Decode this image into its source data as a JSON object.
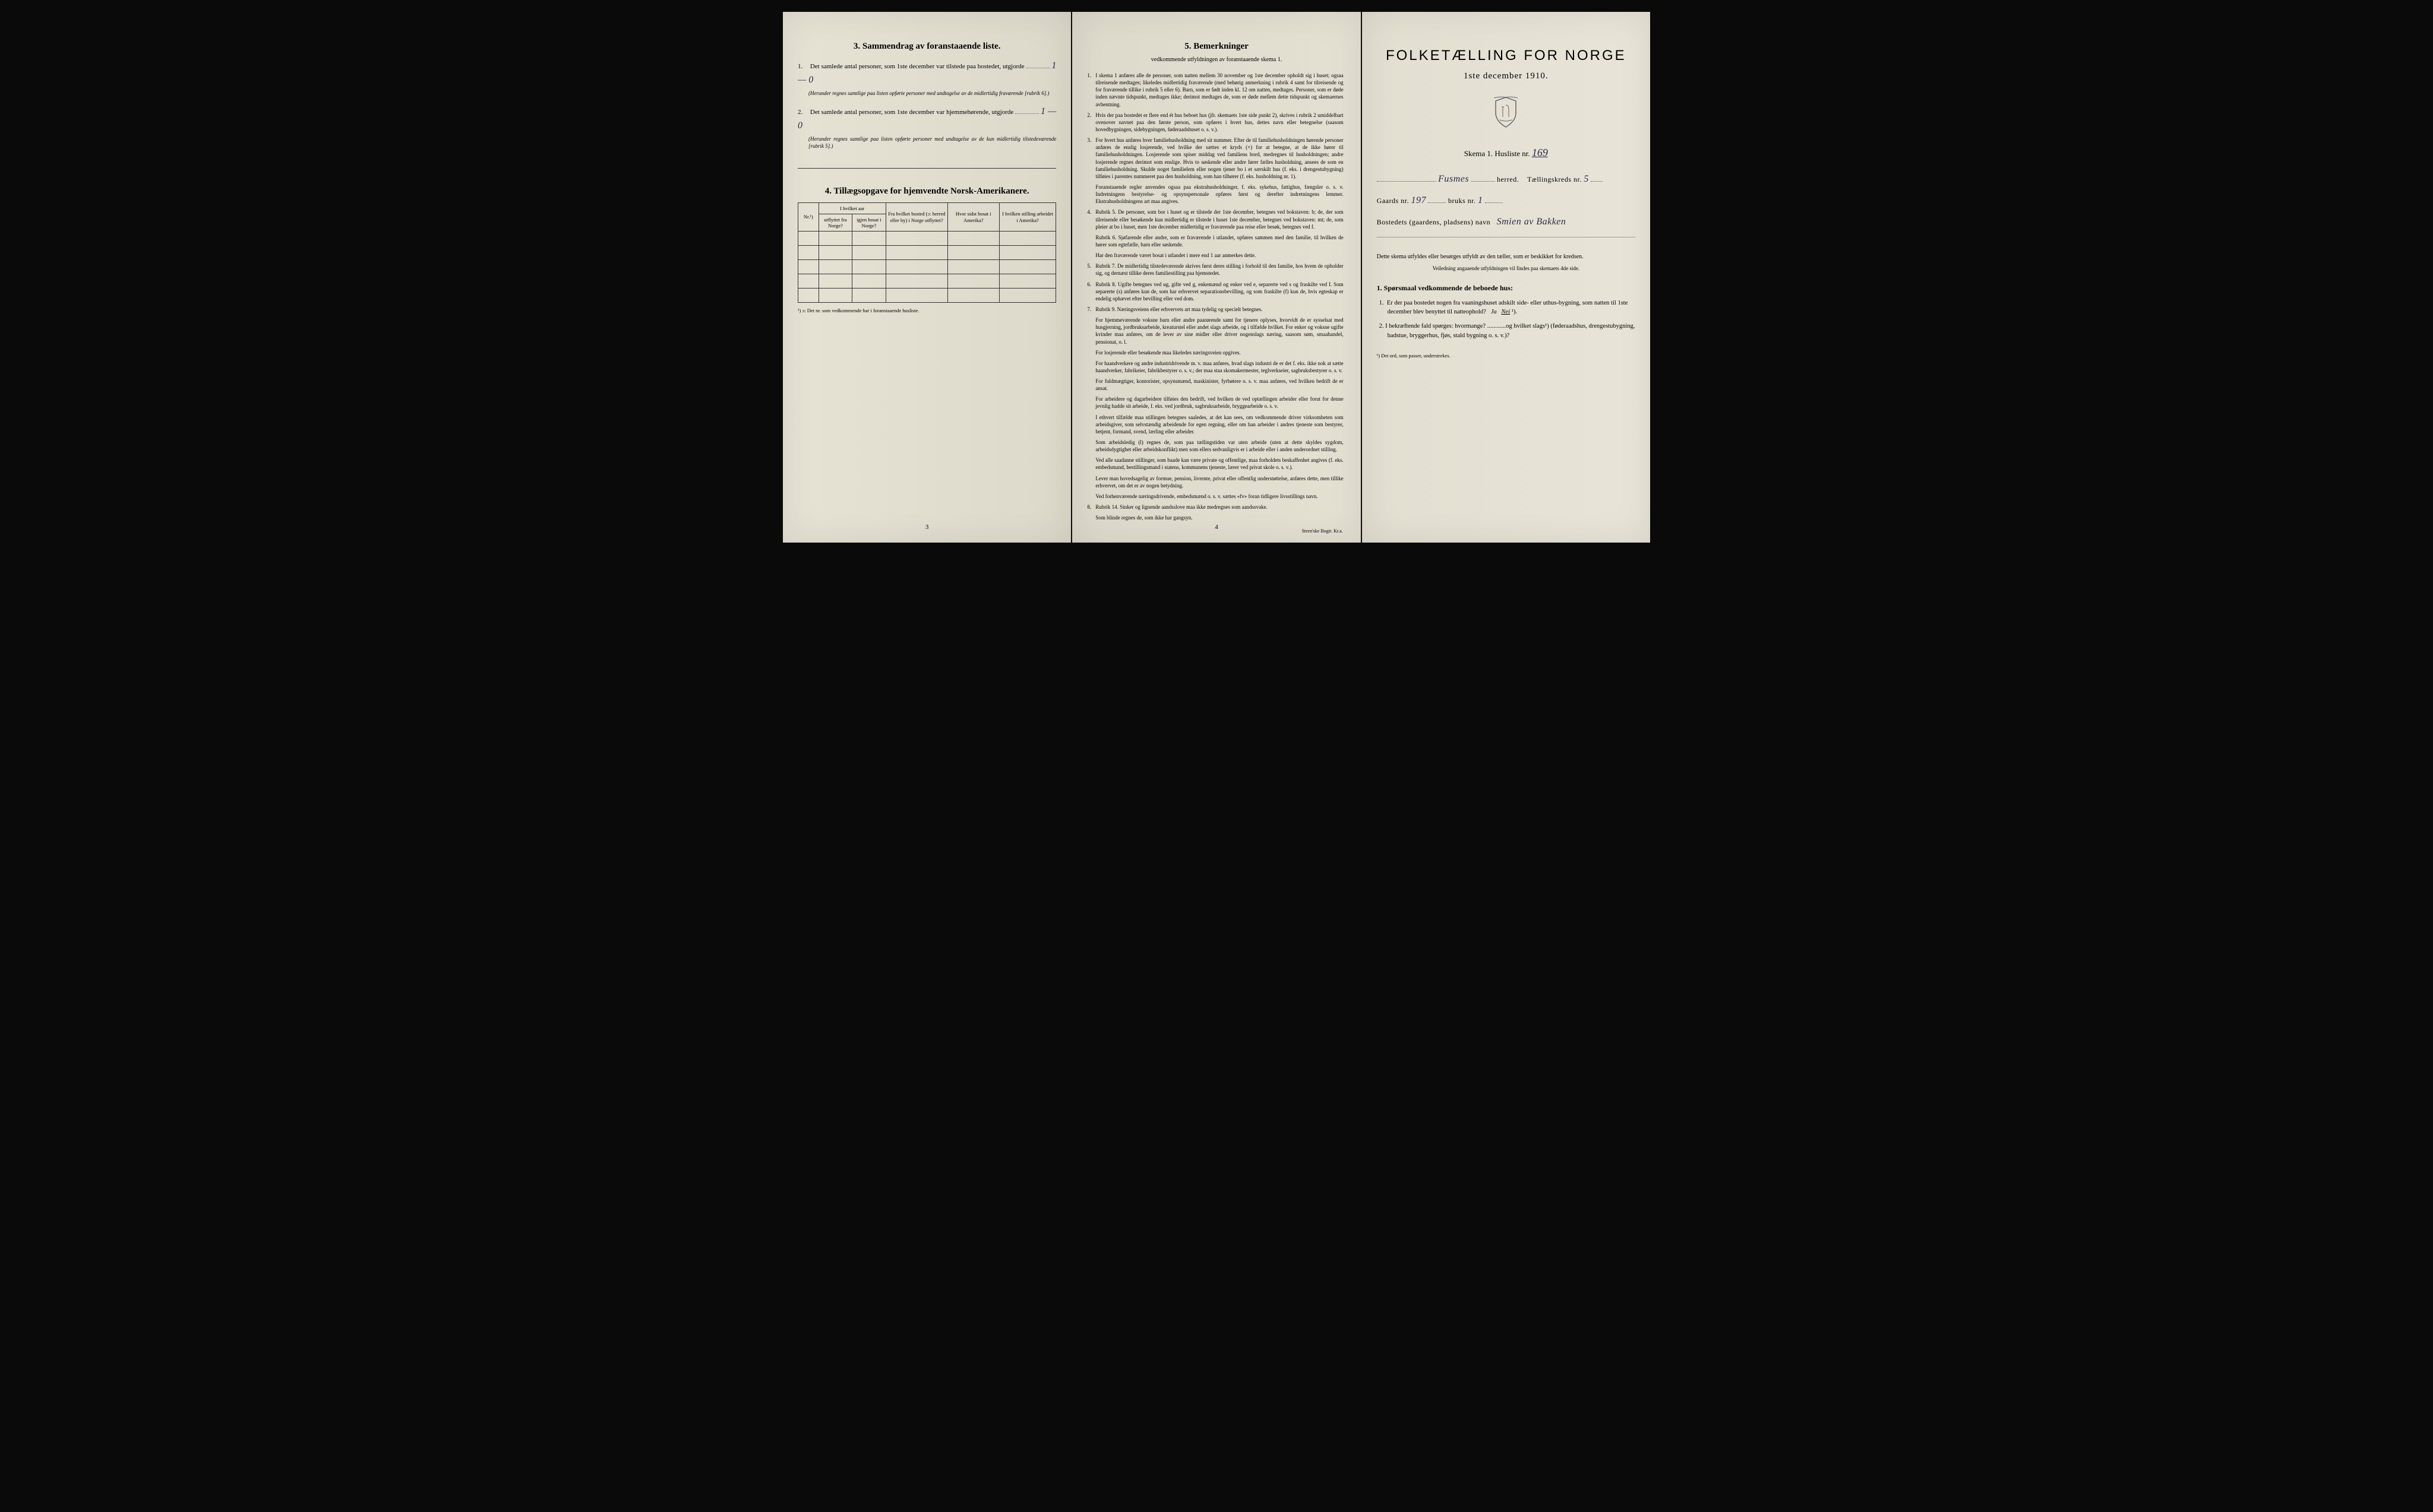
{
  "colors": {
    "paper": "#e8e4d8",
    "paper_shadow": "#dcd8ca",
    "ink": "#1a1a1a",
    "handwriting": "#2a2a4a",
    "background": "#0a0a0a"
  },
  "page_left": {
    "section3": {
      "header": "3.  Sammendrag av foranstaaende liste.",
      "item1": {
        "num": "1.",
        "text_before": "Det samlede antal personer, som 1ste december var tilstede paa bostedet, utgjorde",
        "handwritten": "1 — 0",
        "note": "(Herunder regnes samtlige paa listen opførte personer med undtagelse av de midlertidig fraværende [rubrik 6].)"
      },
      "item2": {
        "num": "2.",
        "text_before": "Det samlede antal personer, som 1ste december var hjemmehørende, utgjorde",
        "handwritten": "1 — 0",
        "note": "(Herunder regnes samtlige paa listen opførte personer med undtagelse av de kun midlertidig tilstedeværende [rubrik 5].)"
      }
    },
    "section4": {
      "header": "4.  Tillægsopgave for hjemvendte Norsk-Amerikanere.",
      "table": {
        "col_nr": "Nr.¹)",
        "col_group1": "I hvilket aar",
        "col_utflyttet": "utflyttet fra Norge?",
        "col_igjen": "igjen bosat i Norge?",
        "col_bosted": "Fra hvilket bosted (ɔ: herred eller by) i Norge utflyttet?",
        "col_sidst": "Hvor sidst bosat i Amerika?",
        "col_stilling": "I hvilken stilling arbeidet i Amerika?",
        "empty_rows": 5
      },
      "footnote": "¹) ɔ: Det nr. som vedkommende har i foranstaaende husliste."
    },
    "page_num": "3"
  },
  "page_center": {
    "section5": {
      "header": "5.  Bemerkninger",
      "subheader": "vedkommende utfyldningen av foranstaaende skema 1.",
      "items": [
        {
          "num": "1.",
          "text": "I skema 1 anføres alle de personer, som natten mellem 30 november og 1ste december opholdt sig i huset; ogsaa tilreisende medtages; likeledes midlertidig fraværende (med behørig anmerkning i rubrik 4 samt for tilreisende og for fraværende tillike i rubrik 5 eller 6). Barn, som er født inden kl. 12 om natten, medtages. Personer, som er døde inden nævnte tidspunkt, medtages ikke; derimot medtages de, som er døde mellem dette tidspunkt og skemaernes avhentning."
        },
        {
          "num": "2.",
          "text": "Hvis der paa bostedet er flere end ét hus beboet hus (jfr. skemaets 1ste side punkt 2), skrives i rubrik 2 umiddelbart ovenover navnet paa den første person, som opføres i hvert hus, dettes navn eller betegnelse (saasom hovedbygningen, sidebygningen, føderaadshuset o. s. v.)."
        },
        {
          "num": "3.",
          "text": "For hvert hus anføres hver familiehusholdning med sit nummer. Efter de til familiehusholdningen hørende personer anføres de enslig losjerende, ved hvilke der sættes et kryds (×) for at betegne, at de ikke hører til familiehusholdningen. Losjerende som spiser middag ved familiens bord, medregnes til husholdningen; andre losjerende regnes derimot som enslige. Hvis to søskende eller andre fører fælles husholdning, ansees de som en familiehusholdning. Skulde noget familielem eller nogen tjener bo i et særskilt hus (f. eks. i drengestubygning) tilføies i parentes nummeret paa den husholdning, som han tilhører (f. eks. husholdning nr. 1)."
        },
        {
          "num": "",
          "text": "Foranstaaende regler anvendes ogsaa paa ekstrahusholdninger, f. eks. sykehus, fattighus, fængsler o. s. v. Indretningens bestyrelse- og opsynspersonale opføres først og derefter indretningens lemmer. Ekstrahusholdningens art maa angives."
        },
        {
          "num": "4.",
          "text": "Rubrik 5. De personer, som bor i huset og er tilstede der 1ste december, betegnes ved bokstaven: b; de, der som tilreisende eller besøkende kun midlertidig er tilstede i huset 1ste december, betegnes ved bokstaven: mt; de, som pleier at bo i huset, men 1ste december midlertidig er fraværende paa reise eller besøk, betegnes ved f."
        },
        {
          "num": "",
          "text": "Rubrik 6. Sjøfarende eller andre, som er fraværende i utlandet, opføres sammen med den familie, til hvilken de hører som egtefælle, barn eller søskende."
        },
        {
          "num": "",
          "text": "Har den fraværende været bosat i utlandet i mere end 1 aar anmerkes dette."
        },
        {
          "num": "5.",
          "text": "Rubrik 7. De midlertidig tilstedeværende skrives først deres stilling i forhold til den familie, hos hvem de opholder sig, og dernæst tillike deres familiestilling paa hjemstedet."
        },
        {
          "num": "6.",
          "text": "Rubrik 8. Ugifte betegnes ved ug, gifte ved g, enkemænd og enker ved e, separerte ved s og fraskilte ved f. Som separerte (s) anføres kun de, som har erhvervet separationsbevilling, og som fraskilte (f) kun de, hvis egteskap er endelig ophævet efter bevilling eller ved dom."
        },
        {
          "num": "7.",
          "text": "Rubrik 9. Næringsveiens eller erhvervets art maa tydelig og specielt betegnes."
        },
        {
          "num": "",
          "text": "For hjemmeværende voksne barn eller andre paarørende samt for tjenere oplyses, hvorvidt de er sysselsat med husgjerning, jordbruksarbeide, kreaturstel eller andet slags arbeide, og i tilfælde hvilket. For enker og voksne ugifte kvinder maa anføres, om de lever av sine midler eller driver nogenslags næring, saasom søm, smaahandel, pensionat, o. l."
        },
        {
          "num": "",
          "text": "For losjerende eller besøkende maa likeledes næringsveien opgives."
        },
        {
          "num": "",
          "text": "For haandverkere og andre industridrivende m. v. maa anføres, hvad slags industri de er det f. eks. ikke nok at sætte haandverker, fabrikeier, fabrikbestyrer o. s. v.; der maa staa skomakermester, teglverkseier, sagbruksbestyrer o. s. v."
        },
        {
          "num": "",
          "text": "For fuldmægtiger, kontorister, opsynsmænd, maskinister, fyrbøtere o. s. v. maa anføres, ved hvilken bedrift de er ansat."
        },
        {
          "num": "",
          "text": "For arbeidere og dagarbeidere tilføies den bedrift, ved hvilken de ved optællingen arbeider eller forut for denne jevnlig hadde sit arbeide, f. eks. ved jordbruk, sagbruksarbeide, bryggearbeide o. s. v."
        },
        {
          "num": "",
          "text": "I ethvert tilfælde maa stillingen betegnes saaledes, at det kan sees, om vedkommende driver virksomheten som arbeidsgiver, som selvstændig arbeidende for egen regning, eller om han arbeider i andres tjeneste som bestyrer, betjent, formand, svend, lærling eller arbeider."
        },
        {
          "num": "",
          "text": "Som arbeidsledig (l) regnes de, som paa tællingstiden var uten arbeide (uten at dette skyldes sygdom, arbeidsdygtighet eller arbeidskonflikt) men som ellers sedvanligvis er i arbeide eller i anden underordnet stilling."
        },
        {
          "num": "",
          "text": "Ved alle saadanne stillinger, som baade kan være private og offentlige, maa forholdets beskaffenhet angives (f. eks. embedsmand, bestillingsmand i statens, kommunens tjeneste, lærer ved privat skole o. s. v.)."
        },
        {
          "num": "",
          "text": "Lever man hovedsagelig av formue, pension, livrente, privat eller offentlig understøttelse, anføres dette, men tillike erhvervet, om det er av nogen betydning."
        },
        {
          "num": "",
          "text": "Ved forhenværende næringsdrivende, embedsmænd o. s. v. sættes «fv» foran tidligere livsstillings navn."
        },
        {
          "num": "8.",
          "text": "Rubrik 14. Sinker og lignende aandsslove maa ikke medregnes som aandssvake."
        },
        {
          "num": "",
          "text": "Som blinde regnes de, som ikke har gangsyn."
        }
      ]
    },
    "page_num": "4",
    "printer": "Steen'ske Bogtr. Kr.a."
  },
  "page_right": {
    "title": "FOLKETÆLLING FOR NORGE",
    "date": "1ste december 1910.",
    "skema": {
      "label": "Skema 1.  Husliste nr.",
      "value": "169"
    },
    "herred": {
      "value": "Fusmes",
      "label": "herred.",
      "kreds_label": "Tællingskreds nr.",
      "kreds_value": "5"
    },
    "gaard": {
      "label": "Gaards nr.",
      "value": "197",
      "bruks_label": "bruks nr.",
      "bruks_value": "1"
    },
    "bosted": {
      "label": "Bostedets (gaardens, pladsens) navn",
      "value": "Smien av Bakken"
    },
    "instructions": {
      "line1": "Dette skema utfyldes eller besørges utfyldt av den tæller, som er beskikket for kredsen.",
      "line2": "Veiledning angaaende utfyldningen vil findes paa skemaets 4de side."
    },
    "questions": {
      "header": "1. Spørsmaal vedkommende de beboede hus:",
      "q1": "1.  Er der paa bostedet nogen fra vaaningshuset adskilt side- eller uthus-bygning, som natten til 1ste december blev benyttet til natteophold?   Ja   Nei ¹).",
      "q1_answer": "Nei",
      "q2": "2.  I bekræftende fald spørges: hvormange? ............og hvilket slags¹) (føderaadshus, drengestubygning, badstue, bryggerhus, fjøs, stald bygning o. s. v.)?"
    },
    "footnote": "¹) Det ord, som passer, understrekes."
  }
}
